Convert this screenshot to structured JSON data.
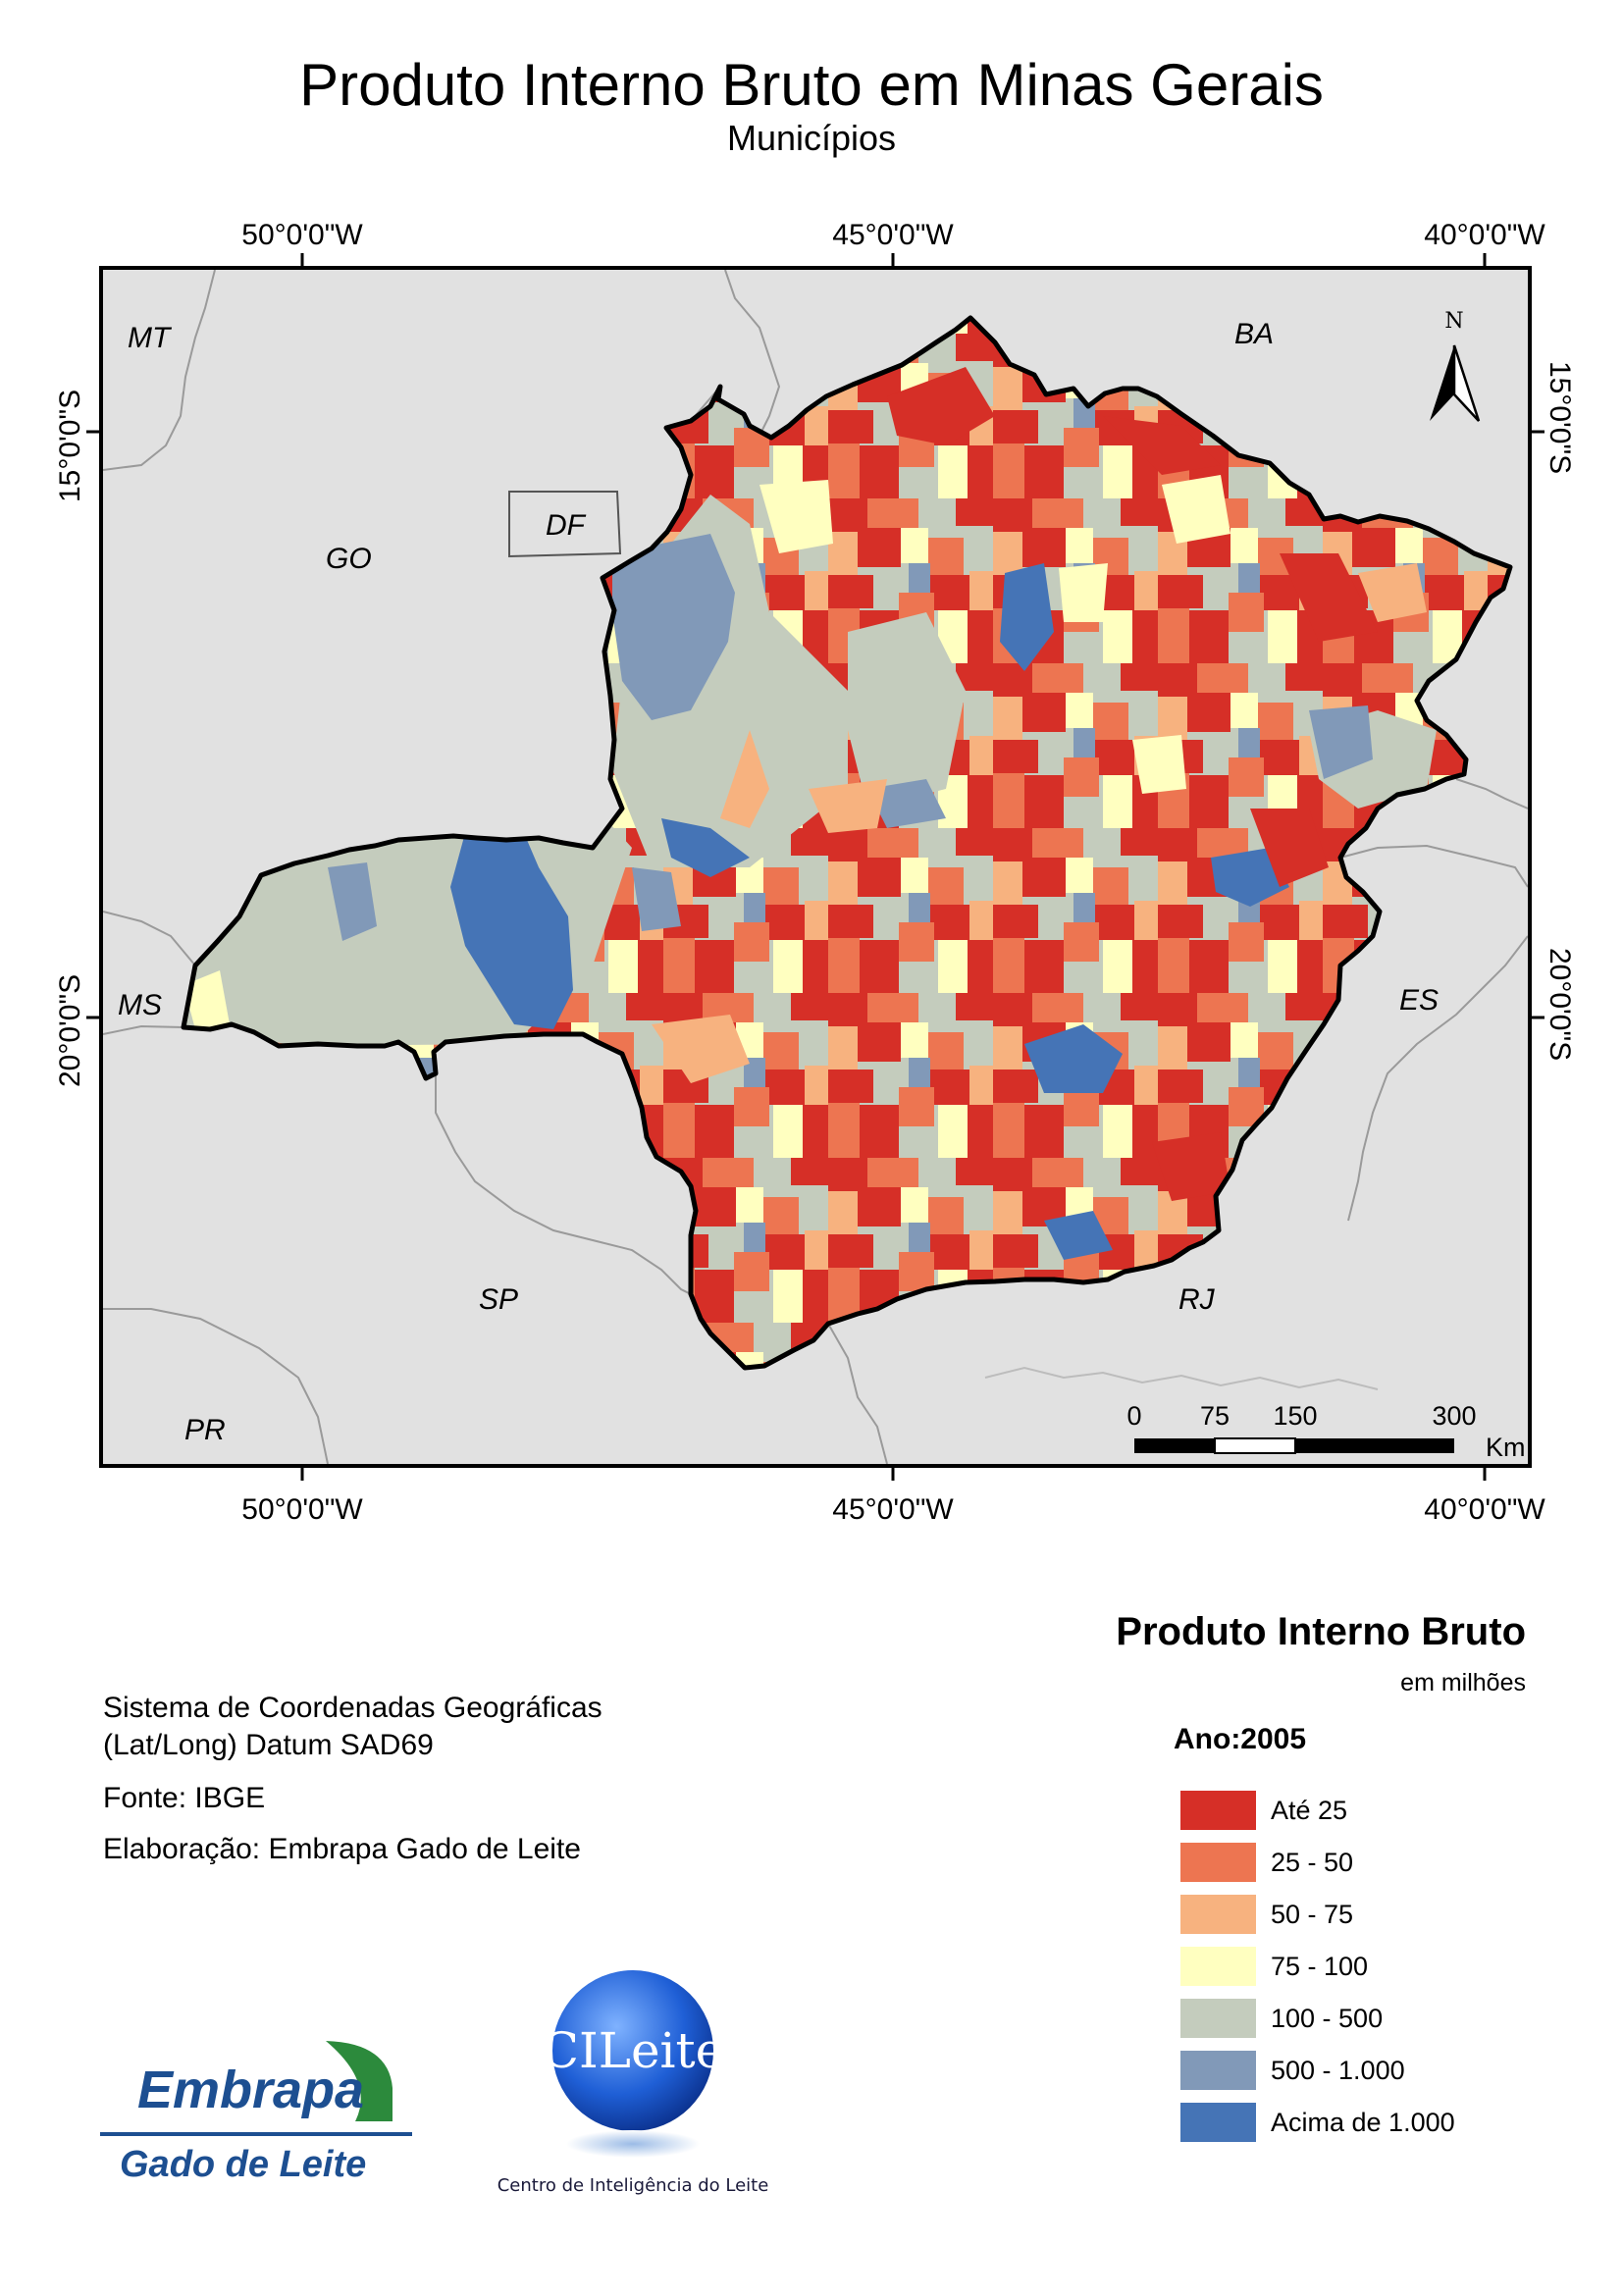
{
  "header": {
    "title": "Produto Interno Bruto em Minas Gerais",
    "subtitle": "Municípios"
  },
  "graticule": {
    "lon_top": [
      "50°0'0\"W",
      "45°0'0\"W",
      "40°0'0\"W"
    ],
    "lon_bottom": [
      "50°0'0\"W",
      "45°0'0\"W",
      "40°0'0\"W"
    ],
    "lat_left": [
      "15°0'0\"S",
      "20°0'0\"S"
    ],
    "lat_right": [
      "15°0'0\"S",
      "20°0'0\"S"
    ]
  },
  "map": {
    "states": [
      "MT",
      "BA",
      "GO",
      "DF",
      "MS",
      "ES",
      "SP",
      "RJ",
      "PR"
    ],
    "north_label": "N",
    "scale": {
      "ticks": [
        "0",
        "75",
        "150",
        "300"
      ],
      "unit": "Km"
    }
  },
  "legend": {
    "title": "Produto Interno Bruto",
    "subtitle": "em milhões",
    "year": "Ano:2005",
    "classes": [
      {
        "label": "Até 25",
        "color": "#d62f27"
      },
      {
        "label": "25 - 50",
        "color": "#ed7551"
      },
      {
        "label": "50 - 75",
        "color": "#f7b27f"
      },
      {
        "label": "75 - 100",
        "color": "#ffffc0"
      },
      {
        "label": "100 - 500",
        "color": "#c4ccbd"
      },
      {
        "label": "500 - 1.000",
        "color": "#8199b8"
      },
      {
        "label": "Acima de 1.000",
        "color": "#4574b6"
      }
    ]
  },
  "info": {
    "coords_line1": "Sistema de Coordenadas Geográficas",
    "coords_line2": "(Lat/Long) Datum SAD69",
    "source": "Fonte: IBGE",
    "author": "Elaboração: Embrapa Gado de Leite"
  },
  "logos": {
    "embrapa_name": "Embrapa",
    "embrapa_unit": "Gado de Leite",
    "cileite_name": "CILeite",
    "cileite_caption": "Centro de Inteligência do Leite"
  }
}
